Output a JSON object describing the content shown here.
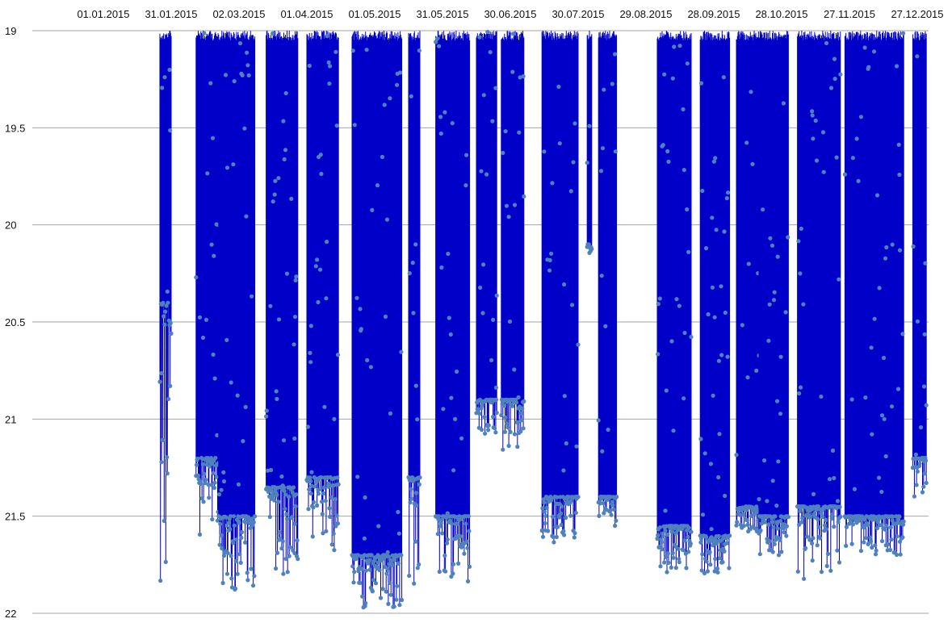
{
  "chart_data": {
    "type": "line",
    "title": "",
    "xlabel": "",
    "ylabel": "",
    "x_axis_position": "top",
    "y_axis_inverted": true,
    "x_range": [
      "2015-01-01",
      "2016-01-01"
    ],
    "x_tick_labels": [
      "01.01.2015",
      "31.01.2015",
      "02.03.2015",
      "01.04.2015",
      "01.05.2015",
      "31.05.2015",
      "30.06.2015",
      "30.07.2015",
      "29.08.2015",
      "28.09.2015",
      "28.10.2015",
      "27.11.2015",
      "27.12.2015"
    ],
    "y_ticks": [
      19,
      19.5,
      20,
      20.5,
      21,
      21.5,
      22
    ],
    "y_tick_labels": [
      "19",
      "19.5",
      "20",
      "20.5",
      "21",
      "21.5",
      "22"
    ],
    "ylim": [
      19,
      22
    ],
    "grid": "horizontal",
    "legend": "none",
    "colors": {
      "line": "#0000c8",
      "marker": "#4f81bd",
      "grid": "#a6a6a6"
    },
    "series": [
      {
        "segments": [
          {
            "start": "2015-01-26",
            "end": "2015-01-31",
            "depth_max": 21.85,
            "depth_typ": 20.4
          },
          {
            "start": "2015-02-11",
            "end": "2015-02-21",
            "depth_max": 21.6,
            "depth_typ": 21.2
          },
          {
            "start": "2015-02-21",
            "end": "2015-03-09",
            "depth_max": 21.9,
            "depth_typ": 21.5
          },
          {
            "start": "2015-03-14",
            "end": "2015-03-28",
            "depth_max": 21.8,
            "depth_typ": 21.35
          },
          {
            "start": "2015-04-01",
            "end": "2015-04-15",
            "depth_max": 21.7,
            "depth_typ": 21.3
          },
          {
            "start": "2015-04-21",
            "end": "2015-05-13",
            "depth_max": 22.0,
            "depth_typ": 21.7
          },
          {
            "start": "2015-05-16",
            "end": "2015-05-21",
            "depth_max": 21.9,
            "depth_typ": 21.3
          },
          {
            "start": "2015-05-28",
            "end": "2015-06-12",
            "depth_max": 21.85,
            "depth_typ": 21.5
          },
          {
            "start": "2015-06-15",
            "end": "2015-06-24",
            "depth_max": 21.1,
            "depth_typ": 20.9
          },
          {
            "start": "2015-06-26",
            "end": "2015-07-06",
            "depth_max": 21.2,
            "depth_typ": 20.9
          },
          {
            "start": "2015-07-14",
            "end": "2015-07-30",
            "depth_max": 21.65,
            "depth_typ": 21.4
          },
          {
            "start": "2015-08-03",
            "end": "2015-08-05",
            "depth_max": 20.15,
            "depth_typ": 20.1
          },
          {
            "start": "2015-08-08",
            "end": "2015-08-16",
            "depth_max": 21.55,
            "depth_typ": 21.4
          },
          {
            "start": "2015-09-03",
            "end": "2015-09-18",
            "depth_max": 21.8,
            "depth_typ": 21.55
          },
          {
            "start": "2015-09-22",
            "end": "2015-10-05",
            "depth_max": 21.8,
            "depth_typ": 21.6
          },
          {
            "start": "2015-10-08",
            "end": "2015-10-18",
            "depth_max": 21.6,
            "depth_typ": 21.45
          },
          {
            "start": "2015-10-18",
            "end": "2015-10-31",
            "depth_max": 21.7,
            "depth_typ": 21.5
          },
          {
            "start": "2015-11-04",
            "end": "2015-11-23",
            "depth_max": 21.85,
            "depth_typ": 21.45
          },
          {
            "start": "2015-11-25",
            "end": "2015-12-21",
            "depth_max": 21.7,
            "depth_typ": 21.5
          },
          {
            "start": "2015-12-25",
            "end": "2015-12-31",
            "depth_max": 21.4,
            "depth_typ": 21.2
          }
        ]
      }
    ]
  }
}
